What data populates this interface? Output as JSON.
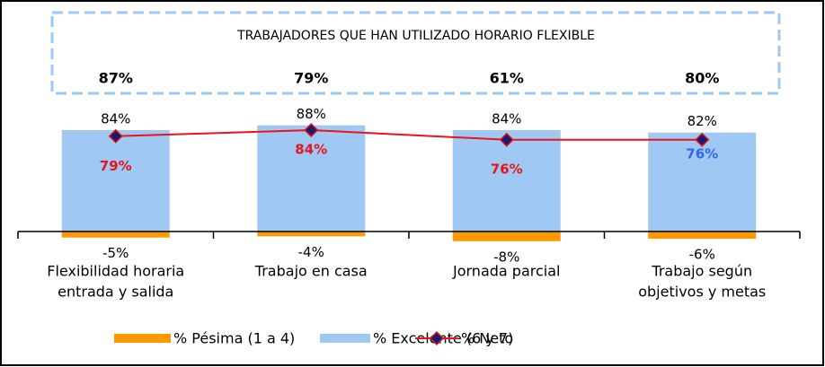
{
  "chart_data": {
    "type": "bar_line",
    "annotation": {
      "title": "TRABAJADORES QUE HAN UTILIZADO HORARIO FLEXIBLE",
      "values": [
        87,
        79,
        61,
        80
      ],
      "value_labels": [
        "87%",
        "79%",
        "61%",
        "80%"
      ]
    },
    "categories": [
      [
        "Flexibilidad horaria",
        "entrada y salida"
      ],
      [
        "Trabajo en casa"
      ],
      [
        "Jornada parcial"
      ],
      [
        "Trabajo según",
        "objetivos y metas"
      ]
    ],
    "series": [
      {
        "name": "% Pésima (1 a 4)",
        "type": "bar",
        "color": "#ff9900",
        "values": [
          -5,
          -4,
          -8,
          -6
        ],
        "value_labels": [
          "-5%",
          "-4%",
          "-8%",
          "-6%"
        ]
      },
      {
        "name": "% Excelente (6 y 7)",
        "type": "bar",
        "color": "#9fc9f2",
        "values": [
          84,
          88,
          84,
          82
        ],
        "value_labels": [
          "84%",
          "88%",
          "84%",
          "82%"
        ]
      },
      {
        "name": "% Neto",
        "type": "line",
        "color": "#e8141b",
        "marker_color": "#1a1a6e",
        "values": [
          79,
          84,
          76,
          76
        ],
        "value_labels": [
          "79%",
          "84%",
          "76%",
          "76%"
        ],
        "label_colors": [
          "#e8141b",
          "#e8141b",
          "#e8141b",
          "#3366ee"
        ]
      }
    ]
  }
}
